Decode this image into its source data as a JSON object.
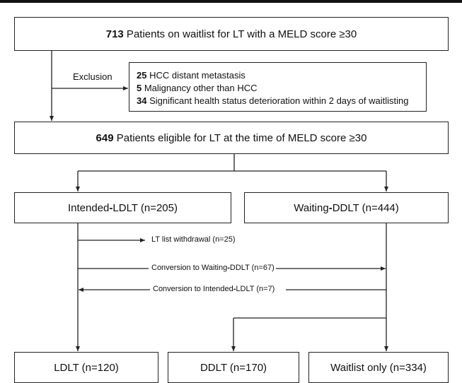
{
  "box1": {
    "count": "713",
    "text": " Patients on waitlist for LT with a MELD score ≥30"
  },
  "exclusion": {
    "label": "Exclusion",
    "items": [
      {
        "count": "25",
        "text": " HCC distant metastasis"
      },
      {
        "count": "5",
        "text": " Malignancy other than HCC"
      },
      {
        "count": "34",
        "text": " Significant health status deterioration within 2 days of waitlisting"
      }
    ]
  },
  "box3": {
    "count": "649",
    "text": " Patients eligible for LT at the time of MELD score ≥30"
  },
  "intended": {
    "prefix": "Intended",
    "dash": "-",
    "suffix": "LDLT (n=205)"
  },
  "waiting": {
    "prefix": "Waiting",
    "dash": "-",
    "suffix": "DDLT (n=444)"
  },
  "transitions": {
    "withdrawal": "LT list withdrawal (n=25)",
    "to_waiting_prefix": "Conversion to Waiting",
    "to_waiting_dash": "-",
    "to_waiting_suffix": "DDLT (n=67)",
    "to_intended_prefix": "Conversion to Intended",
    "to_intended_dash": "-",
    "to_intended_suffix": "LDLT (n=7)"
  },
  "outcomes": {
    "ldlt": "LDLT (n=120)",
    "ddlt": "DDLT (n=170)",
    "waitlist": "Waitlist only (n=334)"
  }
}
